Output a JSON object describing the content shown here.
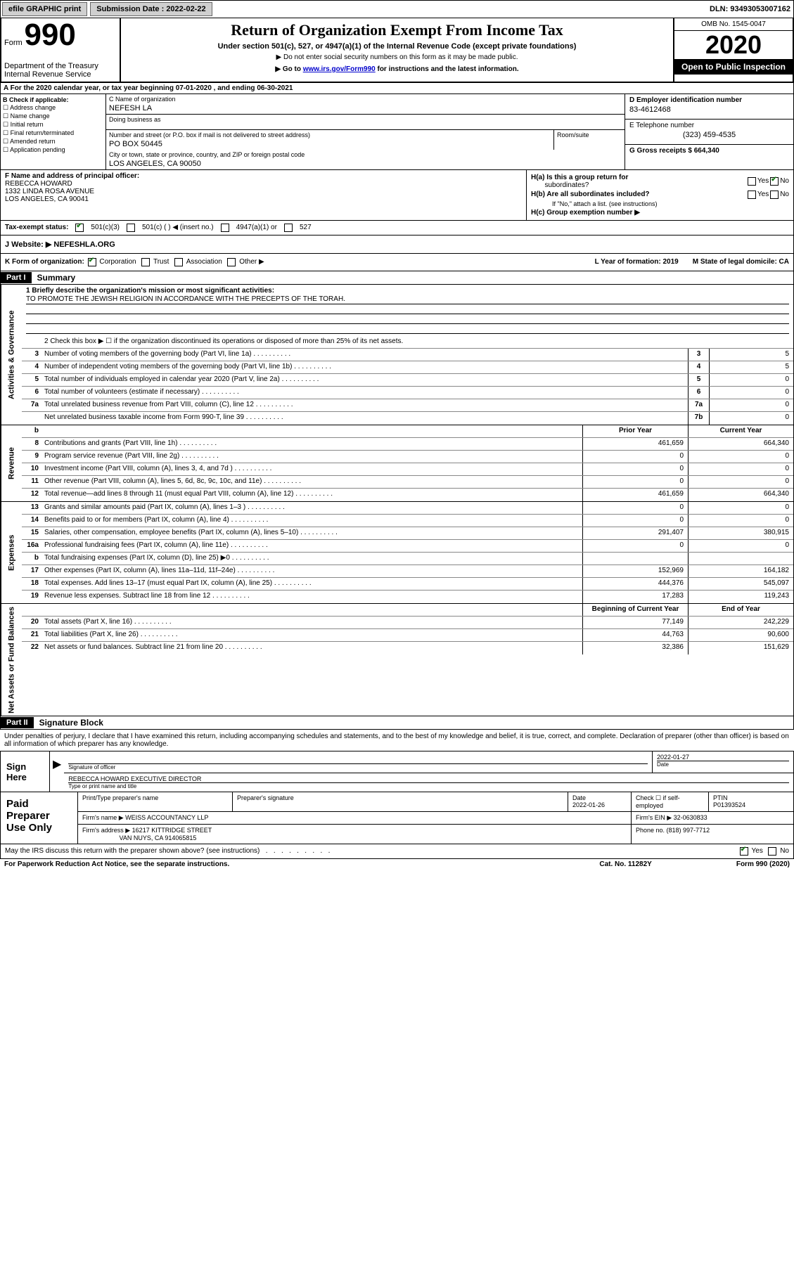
{
  "topbar": {
    "efile_label": "efile GRAPHIC print",
    "submission_label": "Submission Date : 2022-02-22",
    "dln_label": "DLN: 93493053007162"
  },
  "header": {
    "form_word": "Form",
    "form_num": "990",
    "dept": "Department of the Treasury Internal Revenue Service",
    "title": "Return of Organization Exempt From Income Tax",
    "subtitle": "Under section 501(c), 527, or 4947(a)(1) of the Internal Revenue Code (except private foundations)",
    "note1": "▶ Do not enter social security numbers on this form as it may be made public.",
    "note2_prefix": "▶ Go to ",
    "note2_link": "www.irs.gov/Form990",
    "note2_suffix": " for instructions and the latest information.",
    "omb": "OMB No. 1545-0047",
    "year": "2020",
    "open_public": "Open to Public Inspection"
  },
  "lineA": "A For the 2020 calendar year, or tax year beginning 07-01-2020    , and ending 06-30-2021",
  "B": {
    "header": "B Check if applicable:",
    "address_change": "Address change",
    "name_change": "Name change",
    "initial_return": "Initial return",
    "final_return": "Final return/terminated",
    "amended_return": "Amended return",
    "application_pending": "Application pending"
  },
  "C": {
    "name_label": "C Name of organization",
    "name": "NEFESH LA",
    "dba_label": "Doing business as",
    "street_label": "Number and street (or P.O. box if mail is not delivered to street address)",
    "street": "PO BOX 50445",
    "room_label": "Room/suite",
    "city_label": "City or town, state or province, country, and ZIP or foreign postal code",
    "city": "LOS ANGELES, CA   90050"
  },
  "D": {
    "ein_label": "D Employer identification number",
    "ein": "83-4612468",
    "phone_label": "E Telephone number",
    "phone": "(323) 459-4535",
    "gross_label": "G Gross receipts $ 664,340"
  },
  "F": {
    "label": "F  Name and address of principal officer:",
    "name": "REBECCA HOWARD",
    "addr1": "1332 LINDA ROSA AVENUE",
    "addr2": "LOS ANGELES, CA   90041"
  },
  "H": {
    "a_label": "H(a)  Is this a group return for",
    "a_sub": "subordinates?",
    "b_label": "H(b)  Are all subordinates included?",
    "b_note": "If \"No,\" attach a list. (see instructions)",
    "c_label": "H(c)  Group exemption number ▶",
    "yes": "Yes",
    "no": "No"
  },
  "I": {
    "label": "Tax-exempt status:",
    "opt1": "501(c)(3)",
    "opt2": "501(c) (   ) ◀ (insert no.)",
    "opt3": "4947(a)(1) or",
    "opt4": "527"
  },
  "J": {
    "label": "J    Website: ▶ ",
    "value": "NEFESHLA.ORG"
  },
  "K": {
    "label": "K Form of organization:",
    "corp": "Corporation",
    "trust": "Trust",
    "assoc": "Association",
    "other": "Other ▶",
    "L_label": "L Year of formation: 2019",
    "M_label": "M State of legal domicile: CA"
  },
  "part1": {
    "header": "Part I",
    "title": "Summary"
  },
  "summary": {
    "q1_label": "1   Briefly describe the organization's mission or most significant activities:",
    "q1_text": "TO PROMOTE THE JEWISH RELIGION IN ACCORDANCE WITH THE PRECEPTS OF THE TORAH.",
    "q2_label": "2    Check this box ▶ ☐  if the organization discontinued its operations or disposed of more than 25% of its net assets.",
    "rows": [
      {
        "n": "3",
        "label": "Number of voting members of the governing body (Part VI, line 1a)",
        "box": "3",
        "val": "5"
      },
      {
        "n": "4",
        "label": "Number of independent voting members of the governing body (Part VI, line 1b)",
        "box": "4",
        "val": "5"
      },
      {
        "n": "5",
        "label": "Total number of individuals employed in calendar year 2020 (Part V, line 2a)",
        "box": "5",
        "val": "0"
      },
      {
        "n": "6",
        "label": "Total number of volunteers (estimate if necessary)",
        "box": "6",
        "val": "0"
      },
      {
        "n": "7a",
        "label": "Total unrelated business revenue from Part VIII, column (C), line 12",
        "box": "7a",
        "val": "0"
      },
      {
        "n": "",
        "label": "Net unrelated business taxable income from Form 990-T, line 39",
        "box": "7b",
        "val": "0"
      }
    ]
  },
  "revenue": {
    "header_b": "b",
    "col_prior": "Prior Year",
    "col_current": "Current Year",
    "rows": [
      {
        "n": "8",
        "label": "Contributions and grants (Part VIII, line 1h)",
        "prior": "461,659",
        "current": "664,340"
      },
      {
        "n": "9",
        "label": "Program service revenue (Part VIII, line 2g)",
        "prior": "0",
        "current": "0"
      },
      {
        "n": "10",
        "label": "Investment income (Part VIII, column (A), lines 3, 4, and 7d )",
        "prior": "0",
        "current": "0"
      },
      {
        "n": "11",
        "label": "Other revenue (Part VIII, column (A), lines 5, 6d, 8c, 9c, 10c, and 11e)",
        "prior": "0",
        "current": "0"
      },
      {
        "n": "12",
        "label": "Total revenue—add lines 8 through 11 (must equal Part VIII, column (A), line 12)",
        "prior": "461,659",
        "current": "664,340"
      }
    ]
  },
  "expenses": {
    "rows": [
      {
        "n": "13",
        "label": "Grants and similar amounts paid (Part IX, column (A), lines 1–3 )",
        "prior": "0",
        "current": "0"
      },
      {
        "n": "14",
        "label": "Benefits paid to or for members (Part IX, column (A), line 4)",
        "prior": "0",
        "current": "0"
      },
      {
        "n": "15",
        "label": "Salaries, other compensation, employee benefits (Part IX, column (A), lines 5–10)",
        "prior": "291,407",
        "current": "380,915"
      },
      {
        "n": "16a",
        "label": "Professional fundraising fees (Part IX, column (A), line 11e)",
        "prior": "0",
        "current": "0"
      },
      {
        "n": "b",
        "label": "Total fundraising expenses (Part IX, column (D), line 25) ▶0",
        "prior": "GRAY",
        "current": "GRAY"
      },
      {
        "n": "17",
        "label": "Other expenses (Part IX, column (A), lines 11a–11d, 11f–24e)",
        "prior": "152,969",
        "current": "164,182"
      },
      {
        "n": "18",
        "label": "Total expenses. Add lines 13–17 (must equal Part IX, column (A), line 25)",
        "prior": "444,376",
        "current": "545,097"
      },
      {
        "n": "19",
        "label": "Revenue less expenses. Subtract line 18 from line 12",
        "prior": "17,283",
        "current": "119,243"
      }
    ]
  },
  "netassets": {
    "col_begin": "Beginning of Current Year",
    "col_end": "End of Year",
    "rows": [
      {
        "n": "20",
        "label": "Total assets (Part X, line 16)",
        "begin": "77,149",
        "end": "242,229"
      },
      {
        "n": "21",
        "label": "Total liabilities (Part X, line 26)",
        "begin": "44,763",
        "end": "90,600"
      },
      {
        "n": "22",
        "label": "Net assets or fund balances. Subtract line 21 from line 20",
        "begin": "32,386",
        "end": "151,629"
      }
    ]
  },
  "part2": {
    "header": "Part II",
    "title": "Signature Block",
    "declaration": "Under penalties of perjury, I declare that I have examined this return, including accompanying schedules and statements, and to the best of my knowledge and belief, it is true, correct, and complete. Declaration of preparer (other than officer) is based on all information of which preparer has any knowledge."
  },
  "sign": {
    "left": "Sign Here",
    "sig_officer": "Signature of officer",
    "date": "2022-01-27",
    "date_label": "Date",
    "name": "REBECCA HOWARD  EXECUTIVE DIRECTOR",
    "name_label": "Type or print name and title"
  },
  "preparer": {
    "left": "Paid Preparer Use Only",
    "print_name_label": "Print/Type preparer's name",
    "sig_label": "Preparer's signature",
    "date_label": "Date",
    "date": "2022-01-26",
    "check_label": "Check ☐ if self-employed",
    "ptin_label": "PTIN",
    "ptin": "P01393524",
    "firm_name_label": "Firm's name    ▶",
    "firm_name": "WEISS ACCOUNTANCY LLP",
    "firm_ein_label": "Firm's EIN ▶ 32-0630833",
    "firm_addr_label": "Firm's address ▶",
    "firm_addr1": "16217 KITTRIDGE STREET",
    "firm_addr2": "VAN NUYS, CA   914065815",
    "phone_label": "Phone no. (818) 997-7712"
  },
  "footer": {
    "discuss": "May the IRS discuss this return with the preparer shown above? (see instructions)",
    "yes": "Yes",
    "no": "No",
    "paperwork": "For Paperwork Reduction Act Notice, see the separate instructions.",
    "catno": "Cat. No. 11282Y",
    "formref": "Form 990 (2020)"
  },
  "side_labels": {
    "activities": "Activities & Governance",
    "revenue": "Revenue",
    "expenses": "Expenses",
    "netassets": "Net Assets or Fund Balances"
  }
}
